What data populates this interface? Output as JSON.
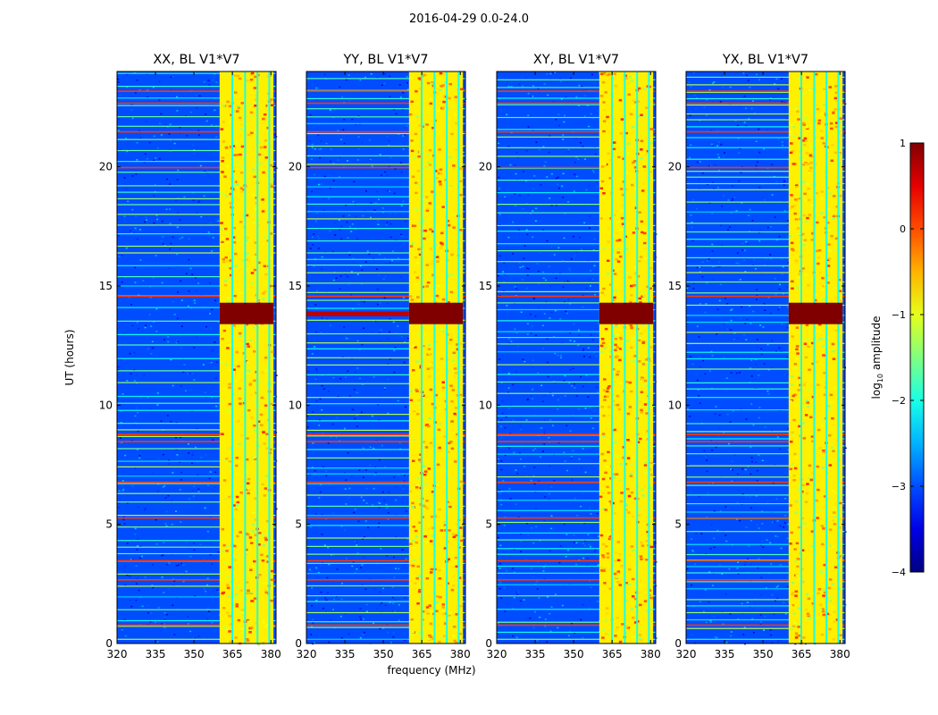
{
  "figure": {
    "suptitle": "2016-04-29 0.0-24.0",
    "xlabel": "frequency (MHz)",
    "ylabel": "UT (hours)"
  },
  "colorbar": {
    "label_prefix": "log",
    "label_sub": "10",
    "label_suffix": " amplitude",
    "ticks": [
      "1",
      "0",
      "−1",
      "−2",
      "−3",
      "−4"
    ],
    "tick_values": [
      1,
      0,
      -1,
      -2,
      -3,
      -4
    ],
    "range": [
      -4,
      1
    ],
    "colormap": "jet"
  },
  "chart_data": {
    "type": "heatmap",
    "title": "2016-04-29 0.0-24.0",
    "xlabel": "frequency (MHz)",
    "ylabel": "UT (hours)",
    "xlim": [
      320,
      382
    ],
    "ylim": [
      0,
      24
    ],
    "x_ticks": [
      320,
      335,
      350,
      365,
      380
    ],
    "x_tick_labels": [
      "320",
      "335",
      "350",
      "365",
      "380"
    ],
    "y_ticks": [
      0,
      5,
      10,
      15,
      20
    ],
    "y_tick_labels": [
      "0",
      "5",
      "10",
      "15",
      "20"
    ],
    "colorbar_range": [
      -4,
      1
    ],
    "panels": [
      {
        "title": "XX, BL V1*V7",
        "polarization": "XX"
      },
      {
        "title": "YY, BL V1*V7",
        "polarization": "YY"
      },
      {
        "title": "XY, BL V1*V7",
        "polarization": "XY"
      },
      {
        "title": "YX, BL V1*V7",
        "polarization": "YX"
      }
    ],
    "features": {
      "background_log_amplitude": -3,
      "rfi_band_mhz": [
        360,
        381
      ],
      "rfi_band_log_amplitude": -0.8,
      "rfi_channel_gaps_mhz": [
        364.6,
        369.6,
        374.4,
        379.0
      ],
      "strong_burst_ut": [
        13.4,
        14.3
      ],
      "strong_burst_log_amplitude": 1,
      "bright_time_rows_ut": [
        0.8,
        2.7,
        3.5,
        5.3,
        6.8,
        8.5,
        8.8,
        14.6,
        20.0,
        21.5,
        22.7,
        23.2
      ]
    }
  }
}
